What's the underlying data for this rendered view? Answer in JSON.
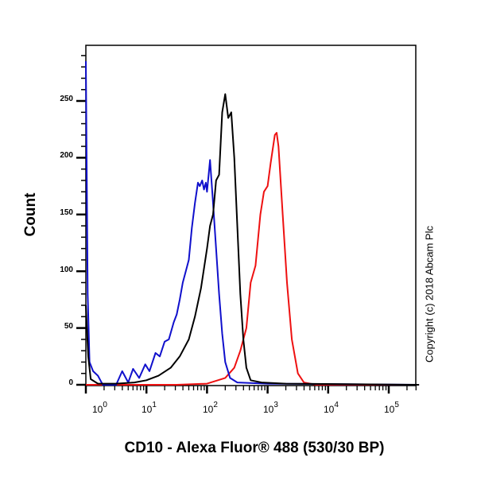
{
  "chart_data": {
    "type": "line",
    "title": "",
    "xlabel": "CD10 - Alexa Fluor® 488 (530/30 BP)",
    "ylabel": "Count",
    "xscale": "log",
    "xlim_log10": [
      0,
      5.5
    ],
    "ylim": [
      0,
      300
    ],
    "x_ticks": [
      "10^0",
      "10^1",
      "10^2",
      "10^3",
      "10^4",
      "10^5"
    ],
    "y_ticks": [
      0,
      50,
      100,
      150,
      200,
      250
    ],
    "grid": false,
    "legend": null,
    "annotation": "Copyright (c) 2018 Abcam Plc",
    "series": [
      {
        "name": "blue",
        "color": "#1010cc",
        "points_log10x_count": [
          [
            0.0,
            285
          ],
          [
            0.03,
            80
          ],
          [
            0.06,
            20
          ],
          [
            0.12,
            12
          ],
          [
            0.2,
            8
          ],
          [
            0.28,
            0
          ],
          [
            0.5,
            0
          ],
          [
            0.6,
            12
          ],
          [
            0.7,
            2
          ],
          [
            0.78,
            14
          ],
          [
            0.88,
            6
          ],
          [
            0.98,
            18
          ],
          [
            1.05,
            12
          ],
          [
            1.15,
            28
          ],
          [
            1.22,
            25
          ],
          [
            1.3,
            38
          ],
          [
            1.37,
            40
          ],
          [
            1.45,
            55
          ],
          [
            1.5,
            62
          ],
          [
            1.55,
            75
          ],
          [
            1.6,
            90
          ],
          [
            1.65,
            100
          ],
          [
            1.7,
            110
          ],
          [
            1.75,
            138
          ],
          [
            1.8,
            160
          ],
          [
            1.85,
            178
          ],
          [
            1.88,
            175
          ],
          [
            1.92,
            180
          ],
          [
            1.95,
            172
          ],
          [
            1.98,
            178
          ],
          [
            2.0,
            170
          ],
          [
            2.05,
            198
          ],
          [
            2.1,
            160
          ],
          [
            2.15,
            120
          ],
          [
            2.2,
            80
          ],
          [
            2.25,
            45
          ],
          [
            2.3,
            20
          ],
          [
            2.38,
            6
          ],
          [
            2.5,
            2
          ],
          [
            3.0,
            1
          ],
          [
            5.5,
            0
          ]
        ]
      },
      {
        "name": "black",
        "color": "#000000",
        "points_log10x_count": [
          [
            0.0,
            70
          ],
          [
            0.04,
            25
          ],
          [
            0.08,
            5
          ],
          [
            0.2,
            1
          ],
          [
            0.5,
            1
          ],
          [
            0.8,
            2
          ],
          [
            1.0,
            4
          ],
          [
            1.2,
            8
          ],
          [
            1.4,
            15
          ],
          [
            1.55,
            25
          ],
          [
            1.7,
            40
          ],
          [
            1.8,
            60
          ],
          [
            1.9,
            85
          ],
          [
            2.0,
            120
          ],
          [
            2.05,
            140
          ],
          [
            2.1,
            150
          ],
          [
            2.15,
            180
          ],
          [
            2.2,
            185
          ],
          [
            2.25,
            240
          ],
          [
            2.3,
            256
          ],
          [
            2.35,
            235
          ],
          [
            2.4,
            240
          ],
          [
            2.45,
            200
          ],
          [
            2.5,
            140
          ],
          [
            2.55,
            80
          ],
          [
            2.6,
            40
          ],
          [
            2.65,
            15
          ],
          [
            2.72,
            4
          ],
          [
            2.9,
            2
          ],
          [
            3.3,
            1
          ],
          [
            5.5,
            0
          ]
        ]
      },
      {
        "name": "red",
        "color": "#ee1111",
        "points_log10x_count": [
          [
            0.0,
            0
          ],
          [
            1.5,
            0
          ],
          [
            2.0,
            1
          ],
          [
            2.3,
            6
          ],
          [
            2.45,
            15
          ],
          [
            2.55,
            30
          ],
          [
            2.65,
            50
          ],
          [
            2.72,
            90
          ],
          [
            2.8,
            105
          ],
          [
            2.88,
            150
          ],
          [
            2.94,
            170
          ],
          [
            3.0,
            175
          ],
          [
            3.05,
            195
          ],
          [
            3.12,
            220
          ],
          [
            3.15,
            222
          ],
          [
            3.18,
            210
          ],
          [
            3.25,
            150
          ],
          [
            3.32,
            90
          ],
          [
            3.4,
            40
          ],
          [
            3.5,
            10
          ],
          [
            3.6,
            2
          ],
          [
            3.8,
            0
          ],
          [
            5.5,
            0
          ]
        ]
      }
    ]
  },
  "labels": {
    "ylabel": "Count",
    "xlabel": "CD10 - Alexa Fluor® 488 (530/30 BP)",
    "copyright": "Copyright (c) 2018 Abcam Plc",
    "yticks": [
      "250",
      "200",
      "150",
      "100",
      "50",
      "0"
    ],
    "xticks_base": "10",
    "xticks_exp": [
      "0",
      "1",
      "2",
      "3",
      "4",
      "5"
    ]
  }
}
